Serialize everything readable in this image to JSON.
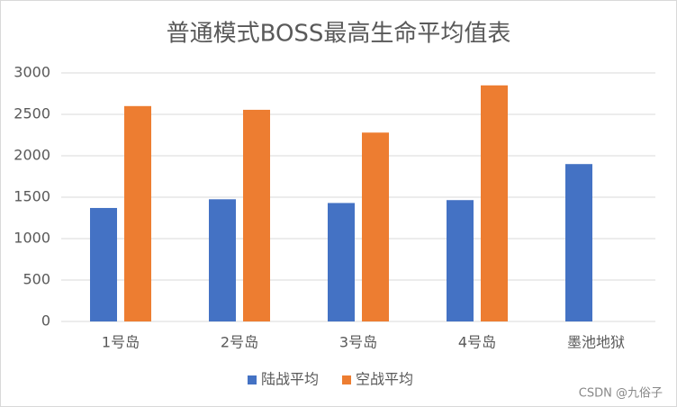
{
  "chart_data": {
    "type": "bar",
    "title": "普通模式BOSS最高生命平均值表",
    "categories": [
      "1号岛",
      "2号岛",
      "3号岛",
      "4号岛",
      "墨池地狱"
    ],
    "series": [
      {
        "name": "陆战平均",
        "color": "#4472c4",
        "values": [
          1370,
          1475,
          1430,
          1465,
          1900
        ]
      },
      {
        "name": "空战平均",
        "color": "#ed7d31",
        "values": [
          2600,
          2555,
          2280,
          2850,
          null
        ]
      }
    ],
    "ylim": [
      0,
      3000
    ],
    "yticks": [
      0,
      500,
      1000,
      1500,
      2000,
      2500,
      3000
    ],
    "grid": true,
    "legend": "bottom",
    "watermark": "CSDN @九俗子"
  }
}
